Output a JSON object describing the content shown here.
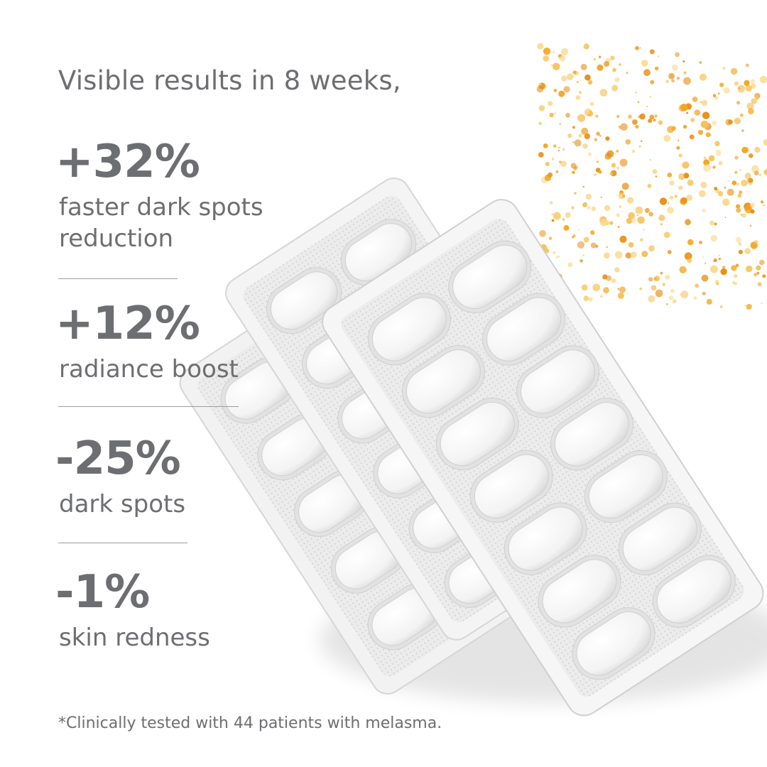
{
  "headline": "Visible results in 8 weeks,",
  "stats": [
    {
      "value": "+32%",
      "label_lines": [
        "faster dark spots",
        "reduction"
      ]
    },
    {
      "value": "+12%",
      "label_lines": [
        "radiance boost"
      ]
    },
    {
      "value": "-25%",
      "label_lines": [
        "dark spots"
      ]
    },
    {
      "value": "-1%",
      "label_lines": [
        "skin redness"
      ]
    }
  ],
  "footnote": "*Clinically tested with 44 patients with melasma.",
  "colors": {
    "text": "#6d6e71",
    "divider": "#9d9ea1",
    "background": "#ffffff",
    "granules": "#f2a51d"
  },
  "illustration": {
    "subject": "blister packs of white tablets",
    "accent": "orange granules"
  }
}
